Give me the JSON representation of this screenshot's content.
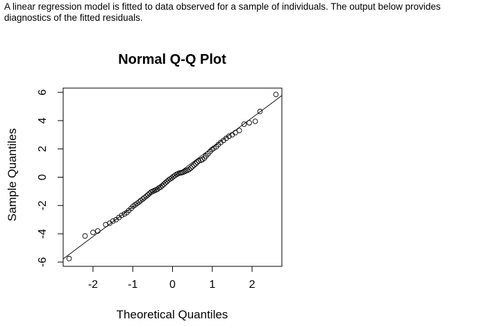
{
  "question": {
    "line1": "A linear regression model is fitted to data observed for a sample of individuals. The output below provides",
    "line2": "diagnostics of the fitted residuals."
  },
  "chart_data": {
    "type": "scatter",
    "title": "Normal Q-Q Plot",
    "xlabel": "Theoretical Quantiles",
    "ylabel": "Sample Quantiles",
    "xlim": [
      -2.75,
      2.75
    ],
    "ylim": [
      -6.3,
      6.3
    ],
    "xticks": [
      -2,
      -1,
      0,
      1,
      2
    ],
    "xtick_labels": [
      "-2",
      "-1",
      "0",
      "1",
      "2"
    ],
    "yticks": [
      -6,
      -4,
      -2,
      0,
      2,
      4,
      6
    ],
    "ytick_labels": [
      "-6",
      "-4",
      "-2",
      "0",
      "2",
      "4",
      "6"
    ],
    "reference_line": {
      "intercept": 0.0,
      "slope": 2.1
    },
    "points": [
      {
        "x": -2.6,
        "y": -5.75
      },
      {
        "x": -2.2,
        "y": -4.15
      },
      {
        "x": -2.0,
        "y": -3.9
      },
      {
        "x": -1.88,
        "y": -3.8
      },
      {
        "x": -1.68,
        "y": -3.35
      },
      {
        "x": -1.58,
        "y": -3.25
      },
      {
        "x": -1.5,
        "y": -3.1
      },
      {
        "x": -1.42,
        "y": -3.0
      },
      {
        "x": -1.35,
        "y": -2.85
      },
      {
        "x": -1.28,
        "y": -2.7
      },
      {
        "x": -1.21,
        "y": -2.6
      },
      {
        "x": -1.15,
        "y": -2.5
      },
      {
        "x": -1.1,
        "y": -2.35
      },
      {
        "x": -1.04,
        "y": -2.2
      },
      {
        "x": -0.99,
        "y": -2.05
      },
      {
        "x": -0.94,
        "y": -1.95
      },
      {
        "x": -0.89,
        "y": -1.85
      },
      {
        "x": -0.84,
        "y": -1.75
      },
      {
        "x": -0.8,
        "y": -1.65
      },
      {
        "x": -0.75,
        "y": -1.55
      },
      {
        "x": -0.71,
        "y": -1.45
      },
      {
        "x": -0.66,
        "y": -1.35
      },
      {
        "x": -0.62,
        "y": -1.25
      },
      {
        "x": -0.58,
        "y": -1.15
      },
      {
        "x": -0.54,
        "y": -1.05
      },
      {
        "x": -0.5,
        "y": -1.0
      },
      {
        "x": -0.46,
        "y": -0.95
      },
      {
        "x": -0.42,
        "y": -0.9
      },
      {
        "x": -0.38,
        "y": -0.85
      },
      {
        "x": -0.34,
        "y": -0.75
      },
      {
        "x": -0.3,
        "y": -0.7
      },
      {
        "x": -0.26,
        "y": -0.6
      },
      {
        "x": -0.22,
        "y": -0.5
      },
      {
        "x": -0.18,
        "y": -0.4
      },
      {
        "x": -0.14,
        "y": -0.3
      },
      {
        "x": -0.1,
        "y": -0.2
      },
      {
        "x": -0.06,
        "y": -0.12
      },
      {
        "x": -0.02,
        "y": -0.05
      },
      {
        "x": 0.02,
        "y": 0.05
      },
      {
        "x": 0.06,
        "y": 0.12
      },
      {
        "x": 0.1,
        "y": 0.2
      },
      {
        "x": 0.14,
        "y": 0.25
      },
      {
        "x": 0.18,
        "y": 0.3
      },
      {
        "x": 0.22,
        "y": 0.32
      },
      {
        "x": 0.26,
        "y": 0.35
      },
      {
        "x": 0.3,
        "y": 0.4
      },
      {
        "x": 0.34,
        "y": 0.45
      },
      {
        "x": 0.38,
        "y": 0.5
      },
      {
        "x": 0.42,
        "y": 0.55
      },
      {
        "x": 0.46,
        "y": 0.65
      },
      {
        "x": 0.5,
        "y": 0.75
      },
      {
        "x": 0.54,
        "y": 0.85
      },
      {
        "x": 0.58,
        "y": 0.95
      },
      {
        "x": 0.62,
        "y": 1.05
      },
      {
        "x": 0.66,
        "y": 1.15
      },
      {
        "x": 0.71,
        "y": 1.2
      },
      {
        "x": 0.75,
        "y": 1.25
      },
      {
        "x": 0.8,
        "y": 1.35
      },
      {
        "x": 0.84,
        "y": 1.5
      },
      {
        "x": 0.89,
        "y": 1.65
      },
      {
        "x": 0.94,
        "y": 1.8
      },
      {
        "x": 0.99,
        "y": 1.95
      },
      {
        "x": 1.04,
        "y": 2.05
      },
      {
        "x": 1.1,
        "y": 2.15
      },
      {
        "x": 1.15,
        "y": 2.3
      },
      {
        "x": 1.21,
        "y": 2.45
      },
      {
        "x": 1.28,
        "y": 2.6
      },
      {
        "x": 1.35,
        "y": 2.75
      },
      {
        "x": 1.42,
        "y": 2.9
      },
      {
        "x": 1.5,
        "y": 3.0
      },
      {
        "x": 1.58,
        "y": 3.15
      },
      {
        "x": 1.68,
        "y": 3.3
      },
      {
        "x": 1.8,
        "y": 3.75
      },
      {
        "x": 1.93,
        "y": 3.85
      },
      {
        "x": 2.08,
        "y": 3.95
      },
      {
        "x": 2.2,
        "y": 4.65
      },
      {
        "x": 2.6,
        "y": 5.85
      }
    ]
  }
}
